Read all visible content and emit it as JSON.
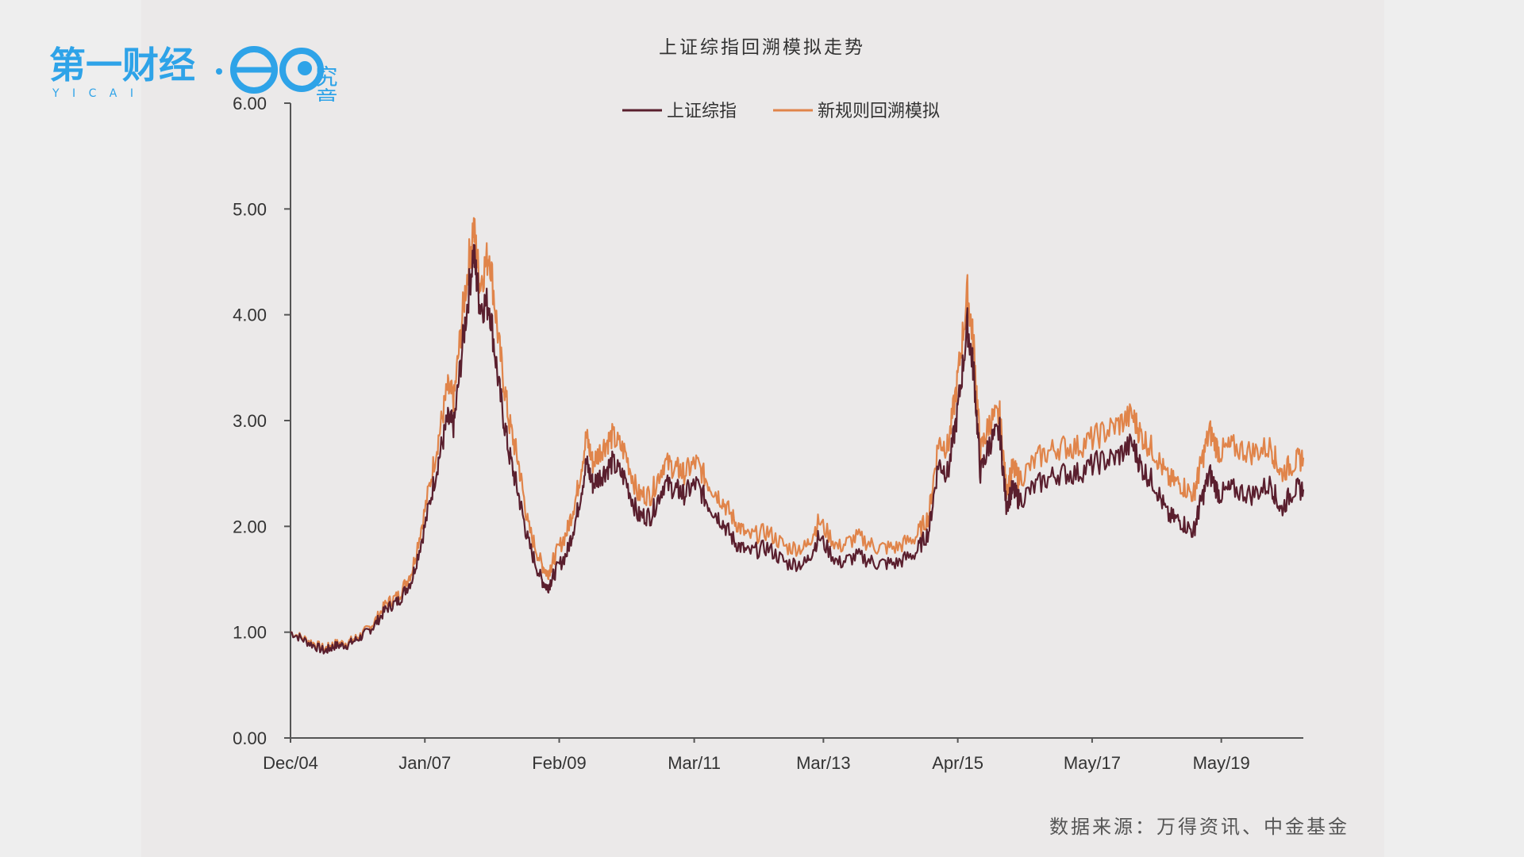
{
  "brand": {
    "logo_text": "第一财经",
    "logo_sub": "Y I C A I",
    "partner_text": "究竟"
  },
  "colors": {
    "series_index": "#5a1f2e",
    "series_sim": "#e0844a",
    "axis": "#555555",
    "brand_blue": "#2ea3e8"
  },
  "chart_data": {
    "type": "line",
    "title": "上证综指回溯模拟走势",
    "xlabel": "",
    "ylabel": "",
    "ylim": [
      0,
      6
    ],
    "yticks": [
      "0.00",
      "1.00",
      "2.00",
      "3.00",
      "4.00",
      "5.00",
      "6.00"
    ],
    "xticks": [
      "Dec/04",
      "Jan/07",
      "Feb/09",
      "Mar/11",
      "Mar/13",
      "Apr/15",
      "May/17",
      "May/19"
    ],
    "xtick_years": [
      2004.92,
      2007.0,
      2009.08,
      2011.17,
      2013.17,
      2015.25,
      2017.33,
      2019.33
    ],
    "legend_position": "top-center",
    "x": [
      2004.92,
      2005.2,
      2005.45,
      2005.6,
      2005.8,
      2006.0,
      2006.2,
      2006.4,
      2006.6,
      2006.8,
      2007.0,
      2007.2,
      2007.35,
      2007.45,
      2007.6,
      2007.75,
      2007.85,
      2008.0,
      2008.15,
      2008.3,
      2008.45,
      2008.6,
      2008.8,
      2008.9,
      2009.0,
      2009.2,
      2009.35,
      2009.5,
      2009.6,
      2009.75,
      2009.9,
      2010.1,
      2010.3,
      2010.5,
      2010.7,
      2010.9,
      2011.0,
      2011.2,
      2011.4,
      2011.6,
      2011.8,
      2012.0,
      2012.3,
      2012.6,
      2012.9,
      2013.1,
      2013.4,
      2013.7,
      2014.0,
      2014.3,
      2014.6,
      2014.8,
      2014.95,
      2015.1,
      2015.25,
      2015.4,
      2015.5,
      2015.6,
      2015.75,
      2015.9,
      2016.0,
      2016.1,
      2016.2,
      2016.5,
      2016.8,
      2017.1,
      2017.4,
      2017.7,
      2017.95,
      2018.1,
      2018.3,
      2018.5,
      2018.7,
      2018.9,
      2019.0,
      2019.15,
      2019.3,
      2019.5,
      2019.8,
      2020.1,
      2020.25,
      2020.45,
      2020.6
    ],
    "series": [
      {
        "name": "上证综指",
        "values": [
          1.0,
          0.9,
          0.82,
          0.87,
          0.88,
          0.95,
          1.05,
          1.22,
          1.3,
          1.5,
          2.0,
          2.6,
          3.0,
          2.95,
          3.8,
          4.6,
          4.1,
          4.1,
          3.3,
          2.7,
          2.3,
          1.85,
          1.5,
          1.42,
          1.55,
          1.75,
          2.1,
          2.6,
          2.4,
          2.5,
          2.6,
          2.45,
          2.1,
          2.1,
          2.4,
          2.35,
          2.3,
          2.4,
          2.2,
          2.05,
          1.85,
          1.75,
          1.8,
          1.65,
          1.65,
          1.9,
          1.65,
          1.72,
          1.65,
          1.65,
          1.75,
          1.95,
          2.6,
          2.5,
          3.1,
          3.9,
          3.45,
          2.5,
          2.8,
          2.9,
          2.2,
          2.35,
          2.25,
          2.4,
          2.5,
          2.5,
          2.6,
          2.65,
          2.78,
          2.55,
          2.4,
          2.1,
          2.05,
          1.95,
          2.2,
          2.5,
          2.3,
          2.35,
          2.3,
          2.4,
          2.15,
          2.35,
          2.35
        ]
      },
      {
        "name": "新规则回溯模拟",
        "values": [
          1.0,
          0.92,
          0.84,
          0.89,
          0.9,
          0.97,
          1.08,
          1.27,
          1.35,
          1.58,
          2.15,
          2.8,
          3.3,
          3.2,
          4.1,
          4.85,
          4.3,
          4.6,
          3.7,
          3.0,
          2.6,
          2.0,
          1.65,
          1.55,
          1.7,
          1.95,
          2.3,
          2.85,
          2.6,
          2.75,
          2.85,
          2.7,
          2.3,
          2.3,
          2.6,
          2.55,
          2.5,
          2.6,
          2.4,
          2.25,
          2.05,
          1.9,
          1.95,
          1.8,
          1.8,
          2.05,
          1.8,
          1.9,
          1.8,
          1.8,
          1.9,
          2.1,
          2.8,
          2.75,
          3.4,
          4.2,
          3.7,
          2.7,
          3.0,
          3.05,
          2.35,
          2.55,
          2.45,
          2.65,
          2.75,
          2.75,
          2.85,
          2.95,
          3.05,
          2.85,
          2.7,
          2.45,
          2.4,
          2.3,
          2.55,
          2.9,
          2.7,
          2.75,
          2.7,
          2.75,
          2.5,
          2.6,
          2.65
        ]
      }
    ]
  },
  "source_text": "数据来源：万得资讯、中金基金"
}
